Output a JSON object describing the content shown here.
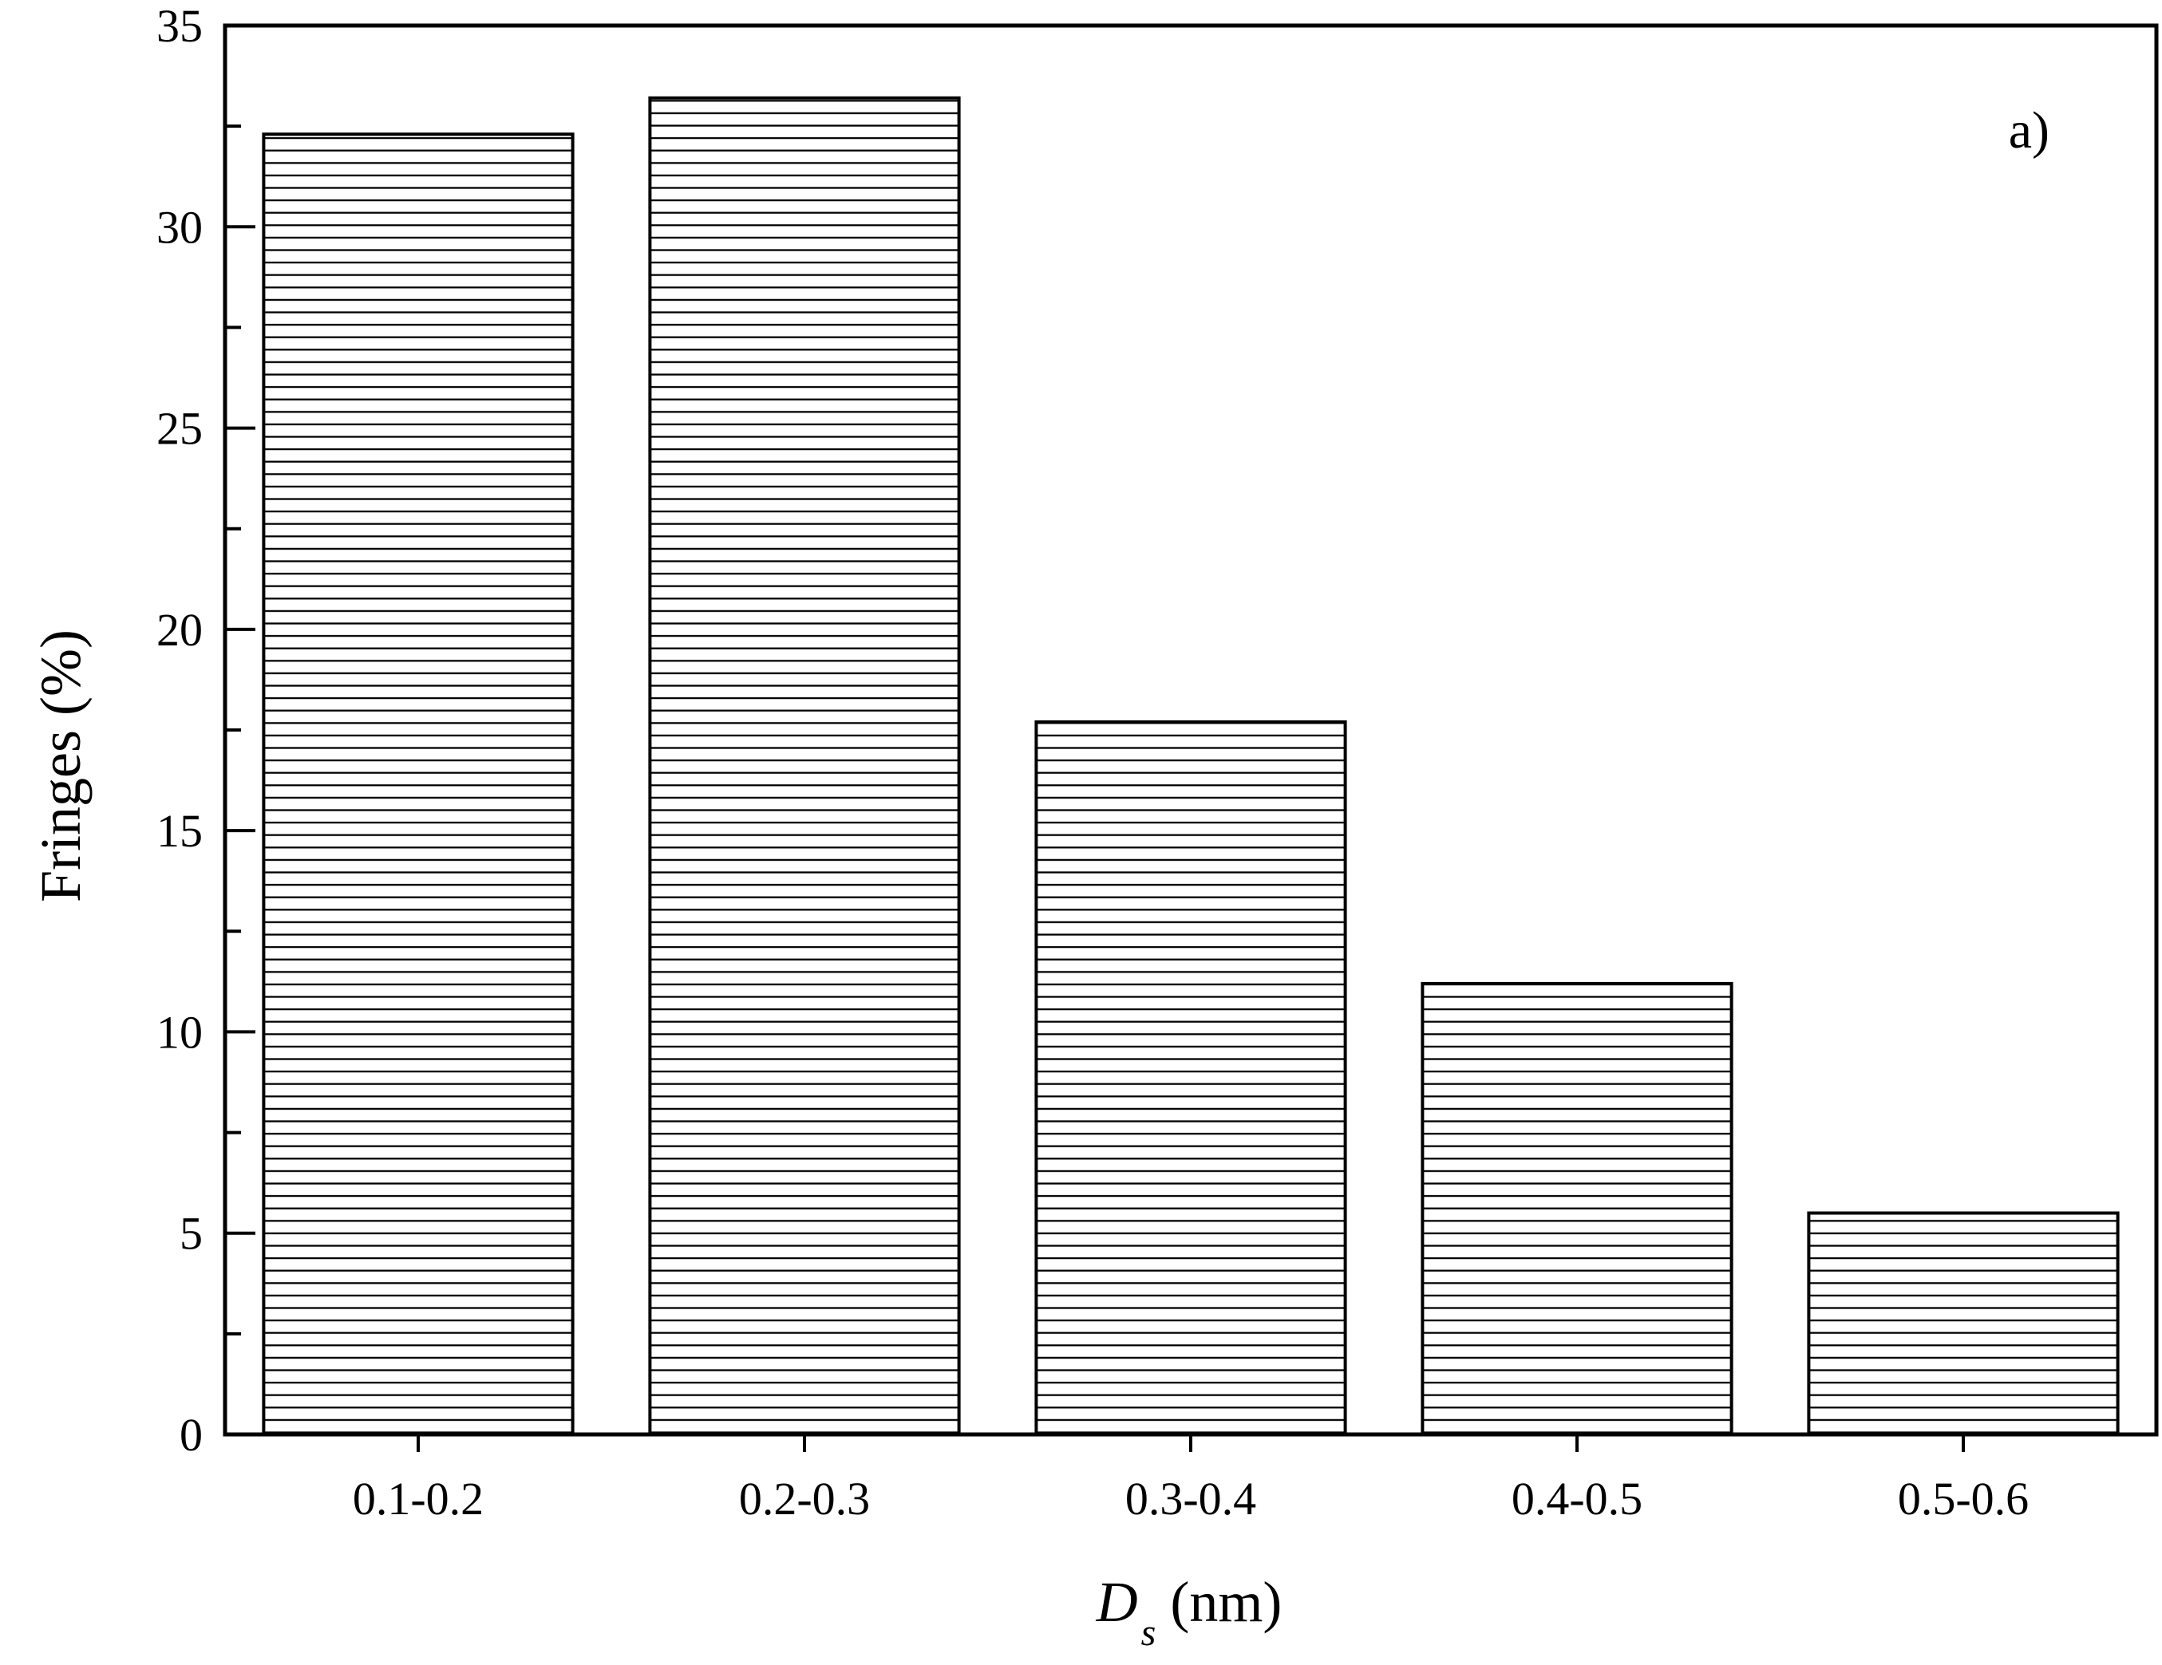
{
  "chart_data": {
    "type": "bar",
    "panel_label": "a)",
    "categories": [
      "0.1-0.2",
      "0.2-0.3",
      "0.3-0.4",
      "0.4-0.5",
      "0.5-0.6"
    ],
    "values": [
      32.3,
      33.2,
      17.7,
      11.2,
      5.5
    ],
    "xlabel": {
      "main": "D",
      "subscript": "s",
      "suffix": " (nm)"
    },
    "ylabel": "Fringes (%)",
    "ylim": [
      0,
      35
    ],
    "yticks": [
      "0",
      "5",
      "10",
      "15",
      "20",
      "25",
      "30",
      "35"
    ],
    "bar_pattern": "horizontal-lines",
    "grid": false,
    "legend": false,
    "colors": {
      "bar_stroke": "#000000",
      "bar_fill": "#ffffff",
      "hatch": "#000000"
    }
  }
}
